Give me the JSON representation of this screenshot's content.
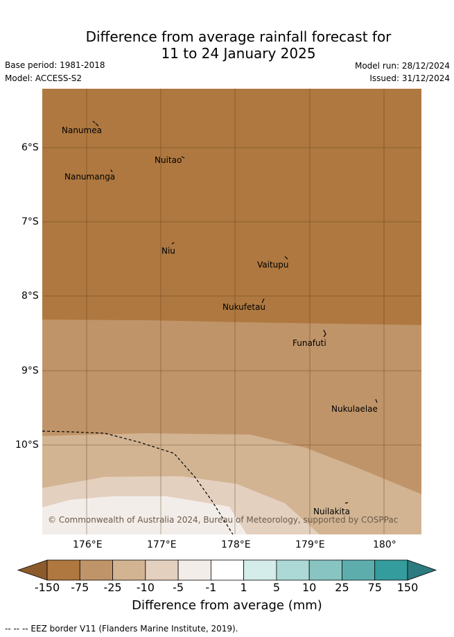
{
  "title_line1": "Difference from average rainfall forecast for",
  "title_line2": "11 to 24 January 2025",
  "base_period": "Base period: 1981-2018",
  "model": "Model: ACCESS-S2",
  "model_run": "Model run: 28/12/2024",
  "issued": "Issued: 31/12/2024",
  "y_ticks": [
    "6°S",
    "7°S",
    "8°S",
    "9°S",
    "10°S"
  ],
  "x_ticks": [
    "176°E",
    "177°E",
    "178°E",
    "179°E",
    "180°"
  ],
  "places": [
    "Nanumea",
    "Nuitao",
    "Nanumanga",
    "Niu",
    "Vaitupu",
    "Nukufetau",
    "Funafuti",
    "Nukulaelae",
    "Nuilakita"
  ],
  "copyright": "© Commonwealth of Australia 2024, Bureau of Meteorology, supported by COSPPac",
  "colorbar": {
    "labels": [
      "-150",
      "-75",
      "-25",
      "-10",
      "-5",
      "-1",
      "1",
      "5",
      "10",
      "25",
      "75",
      "150"
    ],
    "colors": [
      "#8c5a2b",
      "#ae7840",
      "#c09469",
      "#d2b493",
      "#e4d0bf",
      "#f2ede8",
      "#ffffff",
      "#d4ecea",
      "#acd8d6",
      "#88c4c1",
      "#5eadad",
      "#349c9c",
      "#2c7b80"
    ],
    "title": "Difference from average (mm)"
  },
  "footer": "--  --  -- EEZ border V11 (Flanders Marine Institute, 2019)."
}
